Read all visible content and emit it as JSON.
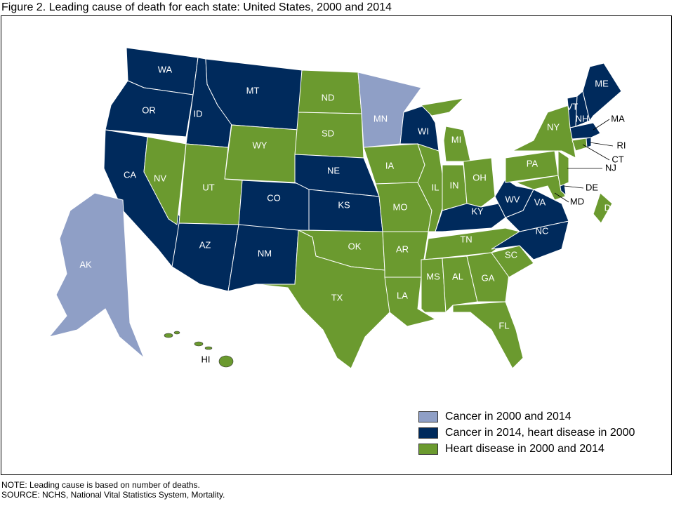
{
  "title": "Figure 2. Leading cause of death for each state: United States, 2000 and 2014",
  "colors": {
    "cancer_both": "#8f9fc6",
    "cancer_2014": "#002a5c",
    "heart_both": "#6b9a2f"
  },
  "legend": [
    {
      "key": "cancer_both",
      "label": "Cancer in 2000 and 2014"
    },
    {
      "key": "cancer_2014",
      "label": "Cancer in 2014, heart disease in 2000"
    },
    {
      "key": "heart_both",
      "label": "Heart disease in 2000 and 2014"
    }
  ],
  "states": {
    "cancer_both": [
      "MN",
      "AK"
    ],
    "cancer_2014": [
      "WA",
      "OR",
      "CA",
      "ID",
      "MT",
      "CO",
      "AZ",
      "NM",
      "NE",
      "KS",
      "WI",
      "KY",
      "WV",
      "VA",
      "NC",
      "ME",
      "VT",
      "NH",
      "MA",
      "RI",
      "DE"
    ],
    "heart_both": [
      "NV",
      "UT",
      "WY",
      "ND",
      "SD",
      "OK",
      "TX",
      "IA",
      "MO",
      "AR",
      "LA",
      "IL",
      "MI",
      "IN",
      "OH",
      "TN",
      "MS",
      "AL",
      "GA",
      "FL",
      "SC",
      "PA",
      "NY",
      "NJ",
      "CT",
      "MD",
      "DC",
      "HI"
    ]
  },
  "notes": [
    "NOTE: Leading cause is based on number of deaths.",
    "SOURCE: NCHS, National Vital Statistics System, Mortality."
  ]
}
